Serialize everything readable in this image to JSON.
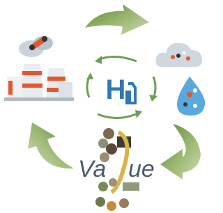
{
  "diagram": {
    "logo_letter": "H",
    "word_start": "Va",
    "word_end": "ue"
  }
}
